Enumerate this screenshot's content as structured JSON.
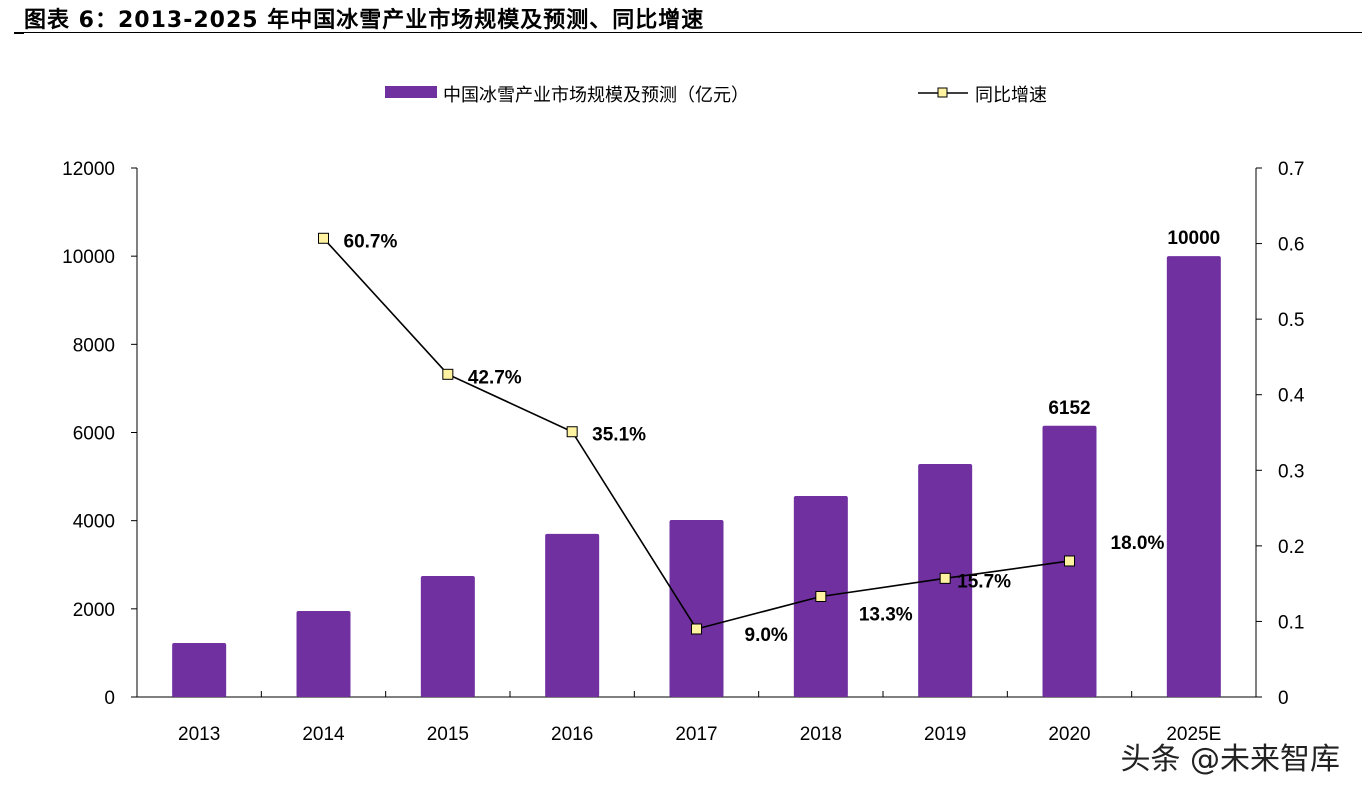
{
  "title": "图表 6：2013-2025 年中国冰雪产业市场规模及预测、同比增速",
  "watermark": "头条 @未来智库",
  "chart_data": {
    "type": "bar+line",
    "categories": [
      "2013",
      "2014",
      "2015",
      "2016",
      "2017",
      "2018",
      "2019",
      "2020",
      "2025E"
    ],
    "series": [
      {
        "name": "中国冰雪产业市场规模及预测（亿元）",
        "type": "bar",
        "axis": "left",
        "color": "#7030A0",
        "values": [
          1225,
          1950,
          2745,
          3700,
          4015,
          4560,
          5285,
          6152,
          10000
        ],
        "data_labels": [
          null,
          null,
          null,
          null,
          null,
          null,
          null,
          "6152",
          "10000"
        ]
      },
      {
        "name": "同比增速",
        "type": "line",
        "axis": "right",
        "color": "#000000",
        "marker_color": "#FFF2A0",
        "values": [
          null,
          0.607,
          0.427,
          0.351,
          0.09,
          0.133,
          0.157,
          0.18,
          null
        ],
        "data_labels": [
          null,
          "60.7%",
          "42.7%",
          "35.1%",
          "9.0%",
          "13.3%",
          "15.7%",
          "18.0%",
          null
        ]
      }
    ],
    "y_left": {
      "range": [
        0,
        12000
      ],
      "ticks": [
        "0",
        "2000",
        "4000",
        "6000",
        "8000",
        "10000",
        "12000"
      ]
    },
    "y_right": {
      "range": [
        0,
        0.7
      ],
      "ticks": [
        "0",
        "0.1",
        "0.2",
        "0.3",
        "0.4",
        "0.5",
        "0.6",
        "0.7"
      ]
    },
    "grid": false,
    "legend": "top-center"
  }
}
